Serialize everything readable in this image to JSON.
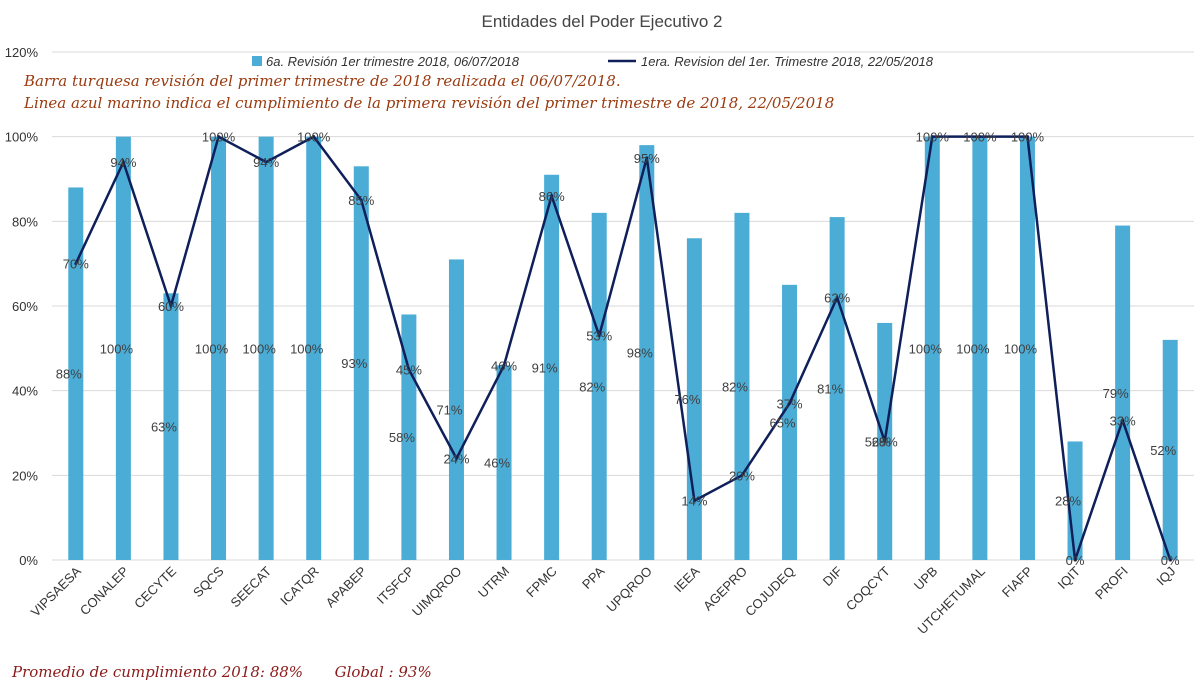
{
  "chart_data": {
    "type": "bar",
    "title": "Entidades del Poder Ejecutivo 2",
    "categories": [
      "VIPSAESA",
      "CONALEP",
      "CECYTE",
      "SQCS",
      "SEECAT",
      "ICATQR",
      "APABEP",
      "ITSFCP",
      "UIMQROO",
      "UTRM",
      "FPMC",
      "PPA",
      "UPQROO",
      "IEEA",
      "AGEPRO",
      "COJUDEQ",
      "DIF",
      "COQCYT",
      "UPB",
      "UTCHETUMAL",
      "FIAFP",
      "IQIT",
      "PROFI",
      "IQJ"
    ],
    "series": [
      {
        "name": "6a. Revisión 1er trimestre 2018, 06/07/2018",
        "kind": "bar",
        "color": "#4bacd6",
        "values": [
          88,
          100,
          63,
          100,
          100,
          100,
          93,
          58,
          71,
          46,
          91,
          82,
          98,
          76,
          82,
          65,
          81,
          56,
          100,
          100,
          100,
          28,
          79,
          52
        ]
      },
      {
        "name": "1era. Revision del 1er. Trimestre 2018, 22/05/2018",
        "kind": "line",
        "color": "#0f1f5a",
        "values": [
          70,
          94,
          60,
          100,
          94,
          100,
          85,
          45,
          24,
          46,
          86,
          53,
          95,
          14,
          20,
          37,
          62,
          28,
          100,
          100,
          100,
          0,
          33,
          0
        ]
      }
    ],
    "yticks": [
      "0%",
      "20%",
      "40%",
      "60%",
      "80%",
      "100%",
      "120%"
    ],
    "ylim": [
      0,
      120
    ],
    "grid": true,
    "legend_position": "top"
  },
  "notes": {
    "line1": "Barra turquesa  revisión del primer trimestre  de 2018 realizada el 06/07/2018.",
    "line2": "Linea azul marino indica el cumplimiento  de la primera revisión del primer trimestre  de 2018,  22/05/2018"
  },
  "footer": {
    "average": "Promedio de cumplimiento  2018: 88%",
    "global": "Global : 93%"
  }
}
